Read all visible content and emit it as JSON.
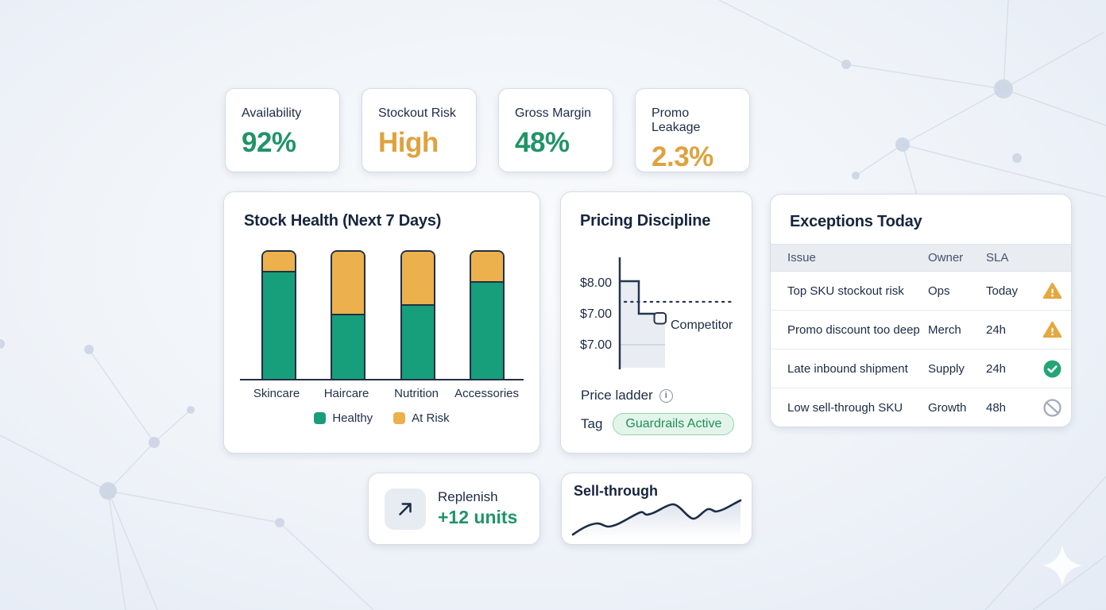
{
  "colors": {
    "positive_green": "#209467",
    "warning_amber": "#dfa23e",
    "navy_ink": "#1d2b45",
    "healthy_bar": "#179e7b",
    "at_risk_bar": "#ecb14d",
    "tag_text_green": "#1f8e58",
    "tag_bg_green": "#e3f5ea"
  },
  "kpis": [
    {
      "label": "Availability",
      "value": "92%",
      "color": "#209467"
    },
    {
      "label": "Stockout Risk",
      "value": "High",
      "color": "#dfa23e"
    },
    {
      "label": "Gross Margin",
      "value": "48%",
      "color": "#209467"
    },
    {
      "label": "Promo Leakage",
      "value": "2.3%",
      "color": "#dfa23e"
    }
  ],
  "stock_health": {
    "title": "Stock Health (Next 7 Days)",
    "chart": {
      "type": "bar",
      "stacked": true,
      "categories": [
        "Skincare",
        "Haircare",
        "Nutrition",
        "Accessories"
      ],
      "series": [
        {
          "name": "Healthy",
          "color": "#179e7b",
          "values": [
            85,
            51,
            59,
            77
          ]
        },
        {
          "name": "At Risk",
          "color": "#ecb14d",
          "values": [
            15,
            49,
            41,
            23
          ]
        }
      ],
      "unit": "percent-of-stack"
    }
  },
  "pricing": {
    "title": "Pricing Discipline",
    "chart": {
      "type": "line",
      "subtype": "step-price-ladder",
      "tick_labels": [
        "$8.00",
        "$7.00",
        "$7.00"
      ],
      "annotation": "Competitor",
      "steps": [
        {
          "price": "$8.00"
        },
        {
          "price": "$7.00"
        }
      ]
    },
    "caption": "Price ladder",
    "info_icon_glyph": "i",
    "tag_label": "Tag",
    "tag_value": "Guardrails Active"
  },
  "exceptions": {
    "title": "Exceptions Today",
    "columns": [
      "Issue",
      "Owner",
      "SLA"
    ],
    "rows": [
      {
        "issue": "Top SKU stockout risk",
        "owner": "Ops",
        "sla": "Today",
        "status": "warning"
      },
      {
        "issue": "Promo discount too deep",
        "owner": "Merch",
        "sla": "24h",
        "status": "warning"
      },
      {
        "issue": "Late inbound shipment",
        "owner": "Supply",
        "sla": "24h",
        "status": "ok"
      },
      {
        "issue": "Low sell-through SKU",
        "owner": "Growth",
        "sla": "48h",
        "status": "blocked"
      }
    ]
  },
  "replenish": {
    "label": "Replenish",
    "value": "+12 units"
  },
  "sell_through": {
    "title": "Sell-through",
    "trend": "rising-wavy"
  }
}
